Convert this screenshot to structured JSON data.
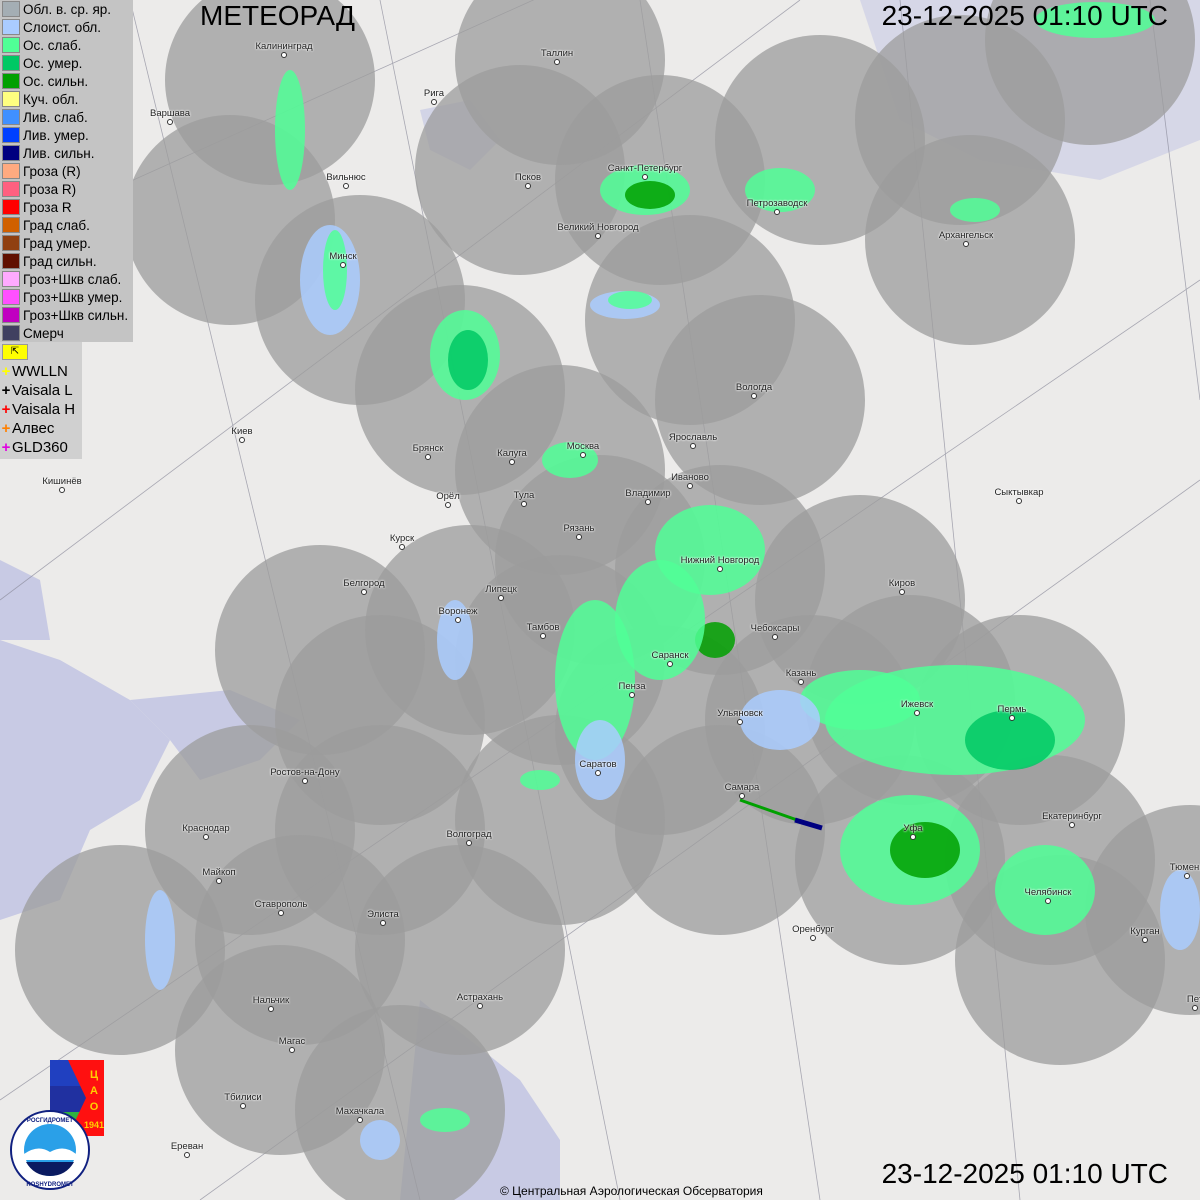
{
  "header": {
    "title": "МЕТЕОРАД",
    "timestamp": "23-12-2025  01:10 UTC"
  },
  "legend": [
    {
      "label": "Обл. в. ср. яр.",
      "color": "#a4aeb4"
    },
    {
      "label": "Слоист. обл.",
      "color": "#aaccff"
    },
    {
      "label": "Ос. слаб.",
      "color": "#50ff96"
    },
    {
      "label": "Ос. умер.",
      "color": "#00c864"
    },
    {
      "label": "Ос. сильн.",
      "color": "#00a000"
    },
    {
      "label": "Куч. обл.",
      "color": "#ffff80"
    },
    {
      "label": "Лив. слаб.",
      "color": "#4090ff"
    },
    {
      "label": "Лив. умер.",
      "color": "#0040ff"
    },
    {
      "label": "Лив. сильн.",
      "color": "#000080"
    },
    {
      "label": "Гроза (R)",
      "color": "#ffaa80"
    },
    {
      "label": "Гроза R)",
      "color": "#ff6080"
    },
    {
      "label": "Гроза R",
      "color": "#ff0000"
    },
    {
      "label": "Град слаб.",
      "color": "#d06000"
    },
    {
      "label": "Град умер.",
      "color": "#904010"
    },
    {
      "label": "Град сильн.",
      "color": "#601000"
    },
    {
      "label": "Гроз+Шкв слаб.",
      "color": "#ffaaff"
    },
    {
      "label": "Гроз+Шкв умер.",
      "color": "#ff50ff"
    },
    {
      "label": "Гроз+Шкв сильн.",
      "color": "#c000c0"
    },
    {
      "label": "Смерч",
      "color": "#404060"
    }
  ],
  "lightning": {
    "flag_icon": "arrow-flag-icon",
    "sources": [
      {
        "label": "WWLLN",
        "color": "#ffff00"
      },
      {
        "label": "Vaisala L",
        "color": "#000000"
      },
      {
        "label": "Vaisala H",
        "color": "#ff0000"
      },
      {
        "label": "Алвес",
        "color": "#ff8000"
      },
      {
        "label": "GLD360",
        "color": "#e000e0"
      }
    ]
  },
  "cities": [
    "Калининград",
    "Варшава",
    "Рига",
    "Таллин",
    "Вильнюс",
    "Псков",
    "Санкт-Петербург",
    "Петрозаводск",
    "Архангельск",
    "Великий Новгород",
    "Минск",
    "Вологда",
    "Киев",
    "Брянск",
    "Калуга",
    "Москва",
    "Ярославль",
    "Иваново",
    "Кишинёв",
    "Орёл",
    "Тула",
    "Владимир",
    "Сыктывкар",
    "Рязань",
    "Курск",
    "Нижний Новгород",
    "Белгород",
    "Липецк",
    "Киров",
    "Воронеж",
    "Тамбов",
    "Чебоксары",
    "Саранск",
    "Казань",
    "Пенза",
    "Ижевск",
    "Пермь",
    "Ульяновск",
    "Ростов-на-Дону",
    "Саратов",
    "Самара",
    "Краснодар",
    "Волгоград",
    "Уфа",
    "Екатеринбург",
    "Майкоп",
    "Тюмень",
    "Челябинск",
    "Ставрополь",
    "Элиста",
    "Оренбург",
    "Курган",
    "Астрахань",
    "Нальчик",
    "Магас",
    "Тбилиси",
    "Махачкала",
    "Ереван",
    "Пет"
  ],
  "logos": {
    "cao": "ЦАО 1941",
    "roshydromet": "РОСГИДРОМЕТ ROSHYDROMET"
  },
  "footer": {
    "copyright": "© Центральная Аэрологическая Обсерватория"
  }
}
